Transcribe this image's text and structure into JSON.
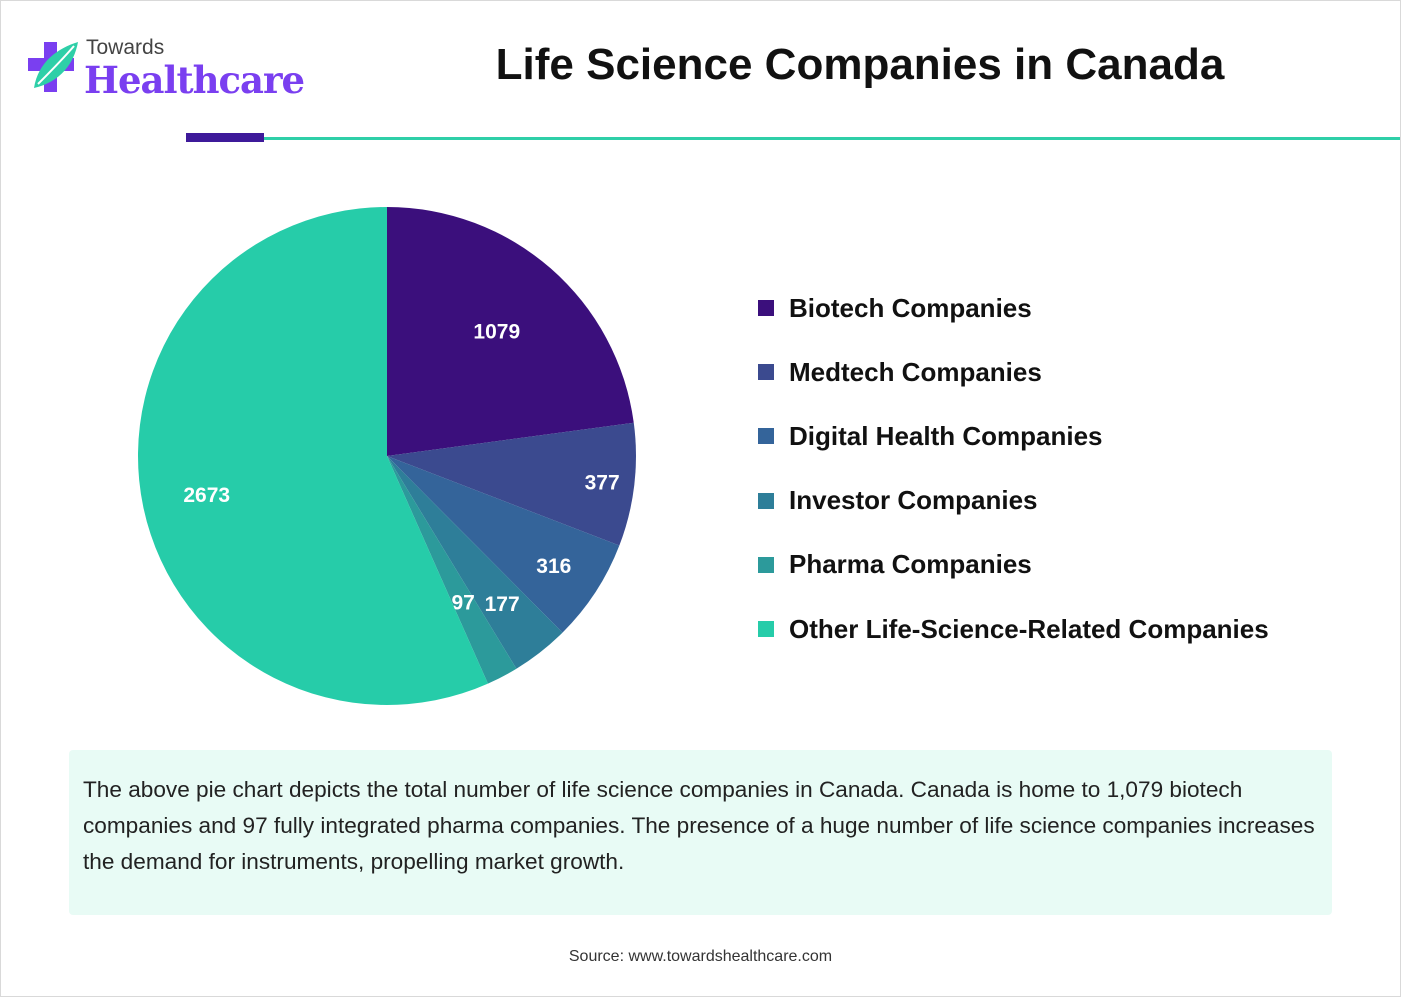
{
  "brand": {
    "line1": "Towards",
    "line2": "Healthcare"
  },
  "header": {
    "title": "Life Science Companies in Canada"
  },
  "colors": {
    "brand_purple": "#7a3ff0",
    "accent_teal": "#2ecfa8",
    "note_bg": "#e8fbf5"
  },
  "chart_data": {
    "type": "pie",
    "title": "Life Science Companies in Canada",
    "categories": [
      "Biotech Companies",
      "Medtech Companies",
      "Digital Health Companies",
      "Investor Companies",
      "Pharma Companies",
      "Other Life-Science-Related Companies"
    ],
    "values": [
      1079,
      377,
      316,
      177,
      97,
      2673
    ],
    "colors": [
      "#3b0f7c",
      "#3b4a8f",
      "#34649a",
      "#2e7e99",
      "#2c9a9b",
      "#26cca9"
    ],
    "legend_position": "right",
    "data_labels": [
      "1079",
      "377",
      "316",
      "177",
      "97",
      "2673"
    ]
  },
  "note": {
    "text": "The above pie chart depicts the total number of life science companies in Canada. Canada is home to 1,079 biotech companies and 97 fully integrated pharma companies. The presence of a huge number of life science companies increases the demand for instruments, propelling market growth."
  },
  "source": "Source: www.towardshealthcare.com"
}
